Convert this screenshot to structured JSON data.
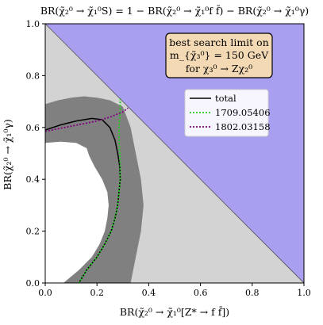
{
  "chart_data": {
    "type": "line",
    "title": "BR(χ̃₂⁰ → χ̃₁⁰S) = 1 − BR(χ̃₂⁰ → χ̃₁⁰f f̄) − BR(χ̃₂⁰ → χ̃₁⁰γ)",
    "xlabel": "BR(χ̃₂⁰ → χ̃₁⁰[Z* → f f̄])",
    "ylabel": "BR(χ̃₂⁰ → χ̃₁⁰γ)",
    "xlim": [
      0.0,
      1.0
    ],
    "ylim": [
      0.0,
      1.0
    ],
    "xticks": [
      "0.0",
      "0.2",
      "0.4",
      "0.6",
      "0.8",
      "1.0"
    ],
    "yticks": [
      "0.0",
      "0.2",
      "0.4",
      "0.6",
      "0.8",
      "1.0"
    ],
    "grid": false,
    "legend_placement": "upper-right",
    "annotation": {
      "line1": "best search limit on",
      "line2": "m_{χ̃₃⁰} = 150 GeV",
      "line3": "for χ₃⁰ → Zχ₂⁰"
    },
    "regions": {
      "unphysical_color": "#a89ff0",
      "allowed_band_color": "#d3d3d3",
      "uncertainty_band_color": "#808080",
      "excluded_color": "#ffffff"
    },
    "series": [
      {
        "name": "total",
        "color": "#000000",
        "style": "solid",
        "x": [
          0.13,
          0.16,
          0.2,
          0.23,
          0.255,
          0.27,
          0.28,
          0.285,
          0.29,
          0.288,
          0.28,
          0.27,
          0.25,
          0.22,
          0.18,
          0.12,
          0.06,
          0.0
        ],
        "y": [
          0.0,
          0.05,
          0.1,
          0.15,
          0.2,
          0.25,
          0.3,
          0.35,
          0.4,
          0.45,
          0.5,
          0.55,
          0.6,
          0.63,
          0.635,
          0.625,
          0.61,
          0.59
        ]
      },
      {
        "name": "1709.05406",
        "color": "#22cc22",
        "style": "dotted",
        "x": [
          0.13,
          0.16,
          0.2,
          0.23,
          0.255,
          0.27,
          0.28,
          0.285,
          0.29,
          0.29,
          0.288,
          0.285,
          0.285,
          0.29,
          0.29
        ],
        "y": [
          0.0,
          0.05,
          0.1,
          0.15,
          0.2,
          0.25,
          0.3,
          0.35,
          0.4,
          0.45,
          0.5,
          0.55,
          0.6,
          0.66,
          0.71
        ]
      },
      {
        "name": "1802.03158",
        "color": "#800080",
        "style": "dotted",
        "x": [
          0.0,
          0.05,
          0.1,
          0.15,
          0.2,
          0.25,
          0.3,
          0.32
        ],
        "y": [
          0.585,
          0.595,
          0.605,
          0.615,
          0.625,
          0.64,
          0.66,
          0.675
        ]
      }
    ],
    "band": {
      "outer": [
        [
          0.07,
          0.0
        ],
        [
          0.13,
          0.05
        ],
        [
          0.18,
          0.1
        ],
        [
          0.21,
          0.15
        ],
        [
          0.23,
          0.2
        ],
        [
          0.24,
          0.25
        ],
        [
          0.245,
          0.3
        ],
        [
          0.24,
          0.35
        ],
        [
          0.22,
          0.4
        ],
        [
          0.19,
          0.45
        ],
        [
          0.17,
          0.49
        ],
        [
          0.16,
          0.52
        ],
        [
          0.12,
          0.54
        ],
        [
          0.06,
          0.545
        ],
        [
          0.0,
          0.54
        ],
        [
          0.0,
          0.69
        ],
        [
          0.05,
          0.705
        ],
        [
          0.1,
          0.715
        ],
        [
          0.15,
          0.72
        ],
        [
          0.2,
          0.715
        ],
        [
          0.25,
          0.705
        ],
        [
          0.3,
          0.68
        ],
        [
          0.33,
          0.6
        ],
        [
          0.35,
          0.5
        ],
        [
          0.37,
          0.4
        ],
        [
          0.38,
          0.3
        ],
        [
          0.37,
          0.2
        ],
        [
          0.35,
          0.1
        ],
        [
          0.33,
          0.0
        ]
      ]
    }
  }
}
